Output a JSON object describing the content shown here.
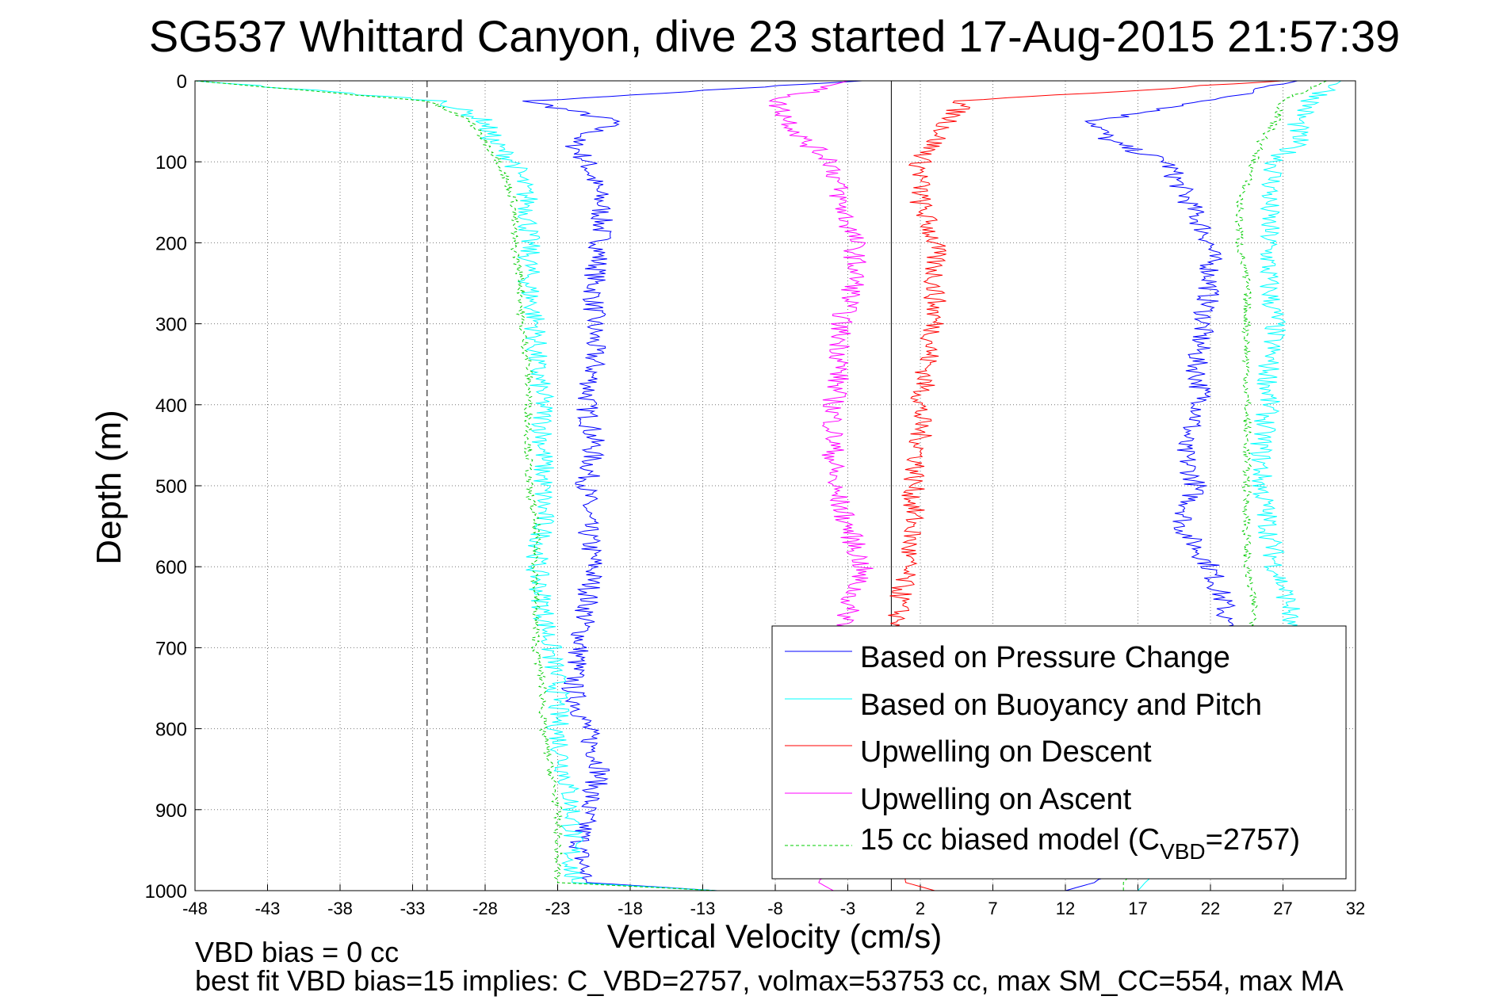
{
  "chart_data": {
    "type": "line",
    "title": "SG537 Whittard Canyon, dive 23 started 17-Aug-2015 21:57:39",
    "xlabel": "Vertical Velocity (cm/s)",
    "ylabel": "Depth (m)",
    "xlim": [
      -48,
      32
    ],
    "ylim": [
      1000,
      0
    ],
    "xticks": [
      "-48",
      "-43",
      "-38",
      "-33",
      "-28",
      "-23",
      "-18",
      "-13",
      "-8",
      "-3",
      "2",
      "7",
      "12",
      "17",
      "22",
      "27",
      "32"
    ],
    "yticks": [
      "0",
      "100",
      "200",
      "300",
      "400",
      "500",
      "600",
      "700",
      "800",
      "900",
      "1000"
    ],
    "grid": true,
    "legend_position": "bottom-right",
    "reference_lines": {
      "zero_solid": 0,
      "dashed": [
        -32,
        32
      ]
    },
    "depth": [
      0,
      25,
      50,
      75,
      100,
      150,
      200,
      250,
      300,
      350,
      400,
      450,
      500,
      550,
      600,
      650,
      700,
      750,
      800,
      850,
      900,
      950,
      990,
      1000
    ],
    "series": [
      {
        "name": "Based on Pressure Change",
        "color": "#0000ff",
        "style": "solid",
        "descent": [
          -2,
          -25,
          -19,
          -22,
          -21,
          -20,
          -20,
          -20.5,
          -20.5,
          -20.5,
          -21,
          -20.5,
          -21,
          -21,
          -20.5,
          -21,
          -21.5,
          -22,
          -21,
          -20,
          -21,
          -21.5,
          -21,
          -12
        ],
        "ascent": [
          28,
          22,
          14,
          15,
          19,
          20.5,
          22,
          22,
          21.5,
          21,
          21.5,
          20,
          21,
          20,
          22,
          23,
          23,
          23,
          23,
          22,
          20,
          17,
          14,
          12
        ]
      },
      {
        "name": "Based on Buoyancy and Pitch",
        "color": "#00ffff",
        "style": "solid",
        "descent": [
          -48,
          -31,
          -28,
          -27.5,
          -26,
          -25,
          -25,
          -25,
          -24.5,
          -24.5,
          -24,
          -24,
          -24,
          -24,
          -24.5,
          -24,
          -23.5,
          -23,
          -23,
          -22.5,
          -22,
          -22,
          -22,
          -12
        ],
        "ascent": [
          31,
          29,
          28,
          28,
          26.5,
          26,
          26,
          26,
          26.5,
          26,
          26,
          25.5,
          25.5,
          26,
          26.5,
          27.5,
          27,
          26,
          25,
          24,
          22,
          20,
          17.5,
          17
        ]
      },
      {
        "name": "Upwelling on Descent",
        "color": "#ff0000",
        "style": "solid",
        "descent": [
          27,
          5,
          4,
          3,
          2,
          2,
          3,
          3,
          3,
          2.5,
          2,
          2,
          1.5,
          1.5,
          1,
          0.5,
          0.5,
          0.5,
          0.5,
          0.5,
          0.5,
          0.5,
          1,
          3
        ]
      },
      {
        "name": "Upwelling on Ascent",
        "color": "#ff00ff",
        "style": "solid",
        "ascent": [
          -3,
          -8,
          -7,
          -6,
          -4,
          -3.5,
          -2.5,
          -2.5,
          -3.5,
          -3.5,
          -4,
          -4,
          -4,
          -3,
          -2,
          -3,
          -3,
          -3,
          -3.5,
          -4,
          -4,
          -4,
          -5,
          -4
        ]
      },
      {
        "name": "15 cc biased model (C_VBD=2757)",
        "legend_main": "15 cc biased model (C",
        "legend_sub": "VBD",
        "legend_tail": "=2757)",
        "color": "#00cc00",
        "style": "dashed",
        "descent": [
          -48,
          -32,
          -29,
          -28,
          -27,
          -26,
          -26,
          -25.5,
          -25.5,
          -25,
          -25,
          -25,
          -25,
          -24.5,
          -24.5,
          -24.5,
          -24.5,
          -24,
          -24,
          -23.5,
          -23,
          -23,
          -23,
          -12
        ],
        "ascent": [
          30,
          27,
          26.5,
          25.5,
          25,
          24,
          24,
          24.5,
          24.5,
          24.5,
          24.5,
          24.5,
          24.5,
          24.5,
          24.5,
          25,
          25,
          24.5,
          24,
          22,
          20,
          18,
          16,
          16
        ]
      }
    ],
    "annotations": {
      "vbd_bias": "VBD bias = 0 cc",
      "best_fit": "best fit VBD bias=15 implies: C_VBD=2757, volmax=53753 cc, max SM_CC=554, max MA"
    }
  }
}
